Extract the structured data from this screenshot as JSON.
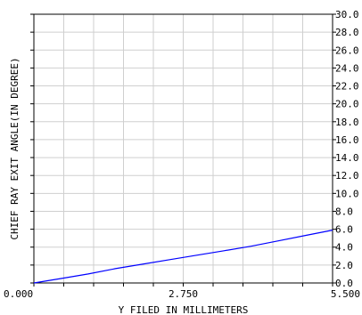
{
  "chart_data": {
    "type": "line",
    "title": "",
    "xlabel": "Y FILED IN MILLIMETERS",
    "ylabel": "CHIEF RAY EXIT ANGLE(IN DEGREE)",
    "xlim": [
      0,
      5.5
    ],
    "ylim": [
      0,
      30
    ],
    "x_tick_labels": [
      "0.000",
      "2.750",
      "5.500"
    ],
    "y_tick_labels": [
      "0.0",
      "2.0",
      "4.0",
      "6.0",
      "8.0",
      "10.0",
      "12.0",
      "14.0",
      "16.0",
      "18.0",
      "20.0",
      "22.0",
      "24.0",
      "26.0",
      "28.0",
      "30.0"
    ],
    "y_axis_side": "right",
    "grid": true,
    "series": [
      {
        "color": "#0000ff",
        "x": [
          0,
          0.5,
          1.0,
          1.5,
          2.0,
          2.5,
          3.0,
          3.5,
          4.0,
          4.5,
          5.0,
          5.5
        ],
        "y": [
          0,
          0.5,
          1.0,
          1.6,
          2.1,
          2.6,
          3.1,
          3.6,
          4.1,
          4.7,
          5.3,
          5.9
        ]
      }
    ]
  }
}
